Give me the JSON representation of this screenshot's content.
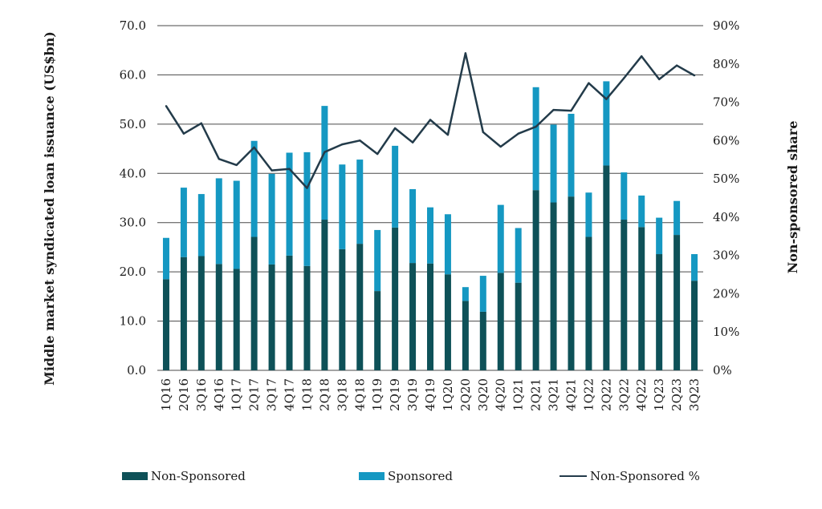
{
  "chart_data": {
    "type": "bar",
    "stacked": true,
    "categories": [
      "1Q16",
      "2Q16",
      "3Q16",
      "4Q16",
      "1Q17",
      "2Q17",
      "3Q17",
      "4Q17",
      "1Q18",
      "2Q18",
      "3Q18",
      "4Q18",
      "1Q19",
      "2Q19",
      "3Q19",
      "4Q19",
      "1Q20",
      "2Q20",
      "3Q20",
      "4Q20",
      "1Q21",
      "2Q21",
      "3Q21",
      "4Q21",
      "1Q22",
      "2Q22",
      "3Q22",
      "4Q22",
      "1Q23",
      "2Q23",
      "3Q23"
    ],
    "series": [
      {
        "name": "Non-Sponsored",
        "type": "bar",
        "axis": "left",
        "values": [
          18.5,
          23.0,
          23.2,
          21.6,
          20.6,
          27.1,
          21.5,
          23.3,
          21.2,
          30.6,
          24.6,
          25.7,
          16.1,
          29.0,
          21.8,
          21.7,
          19.5,
          14.1,
          11.9,
          19.8,
          17.8,
          36.6,
          34.1,
          35.3,
          27.1,
          41.6,
          30.6,
          29.1,
          23.6,
          27.5,
          18.2
        ]
      },
      {
        "name": "Sponsored",
        "type": "bar",
        "axis": "left",
        "values": [
          8.4,
          14.1,
          12.6,
          17.4,
          17.9,
          19.5,
          18.4,
          20.9,
          23.1,
          23.1,
          17.2,
          17.1,
          12.4,
          16.6,
          15.0,
          11.4,
          12.2,
          2.8,
          7.3,
          13.8,
          11.1,
          20.9,
          15.8,
          16.8,
          9.0,
          17.1,
          9.6,
          6.4,
          7.4,
          6.9,
          5.4
        ]
      },
      {
        "name": "Non-Sponsored %",
        "type": "line",
        "axis": "right",
        "values": [
          69.0,
          61.8,
          64.5,
          55.2,
          53.6,
          58.2,
          52.2,
          52.6,
          47.6,
          57.0,
          59.0,
          60.0,
          56.5,
          63.2,
          59.5,
          65.4,
          61.5,
          82.8,
          62.2,
          58.4,
          61.8,
          63.6,
          68.0,
          67.8,
          75.0,
          70.8,
          76.3,
          82.0,
          76.0,
          79.6,
          77.0
        ]
      }
    ],
    "left_axis": {
      "label": "Middle market syndicated loan issuance (US$bn)",
      "ylim": [
        0,
        70
      ],
      "ticks": [
        0,
        10,
        20,
        30,
        40,
        50,
        60,
        70
      ],
      "tick_labels": [
        "0.0",
        "10.0",
        "20.0",
        "30.0",
        "40.0",
        "50.0",
        "60.0",
        "70.0"
      ]
    },
    "right_axis": {
      "label": "Non-sponsored share",
      "ylim": [
        0,
        90
      ],
      "ticks": [
        0,
        10,
        20,
        30,
        40,
        50,
        60,
        70,
        80,
        90
      ],
      "tick_labels": [
        "0%",
        "10%",
        "20%",
        "30%",
        "40%",
        "50%",
        "60%",
        "70%",
        "80%",
        "90%"
      ]
    },
    "grid": true,
    "legend_position": "bottom",
    "colors": {
      "Non-Sponsored": "#0e5158",
      "Sponsored": "#1598c2",
      "Non-Sponsored %": "#233b4a"
    }
  },
  "legend": [
    {
      "label": "Non-Sponsored",
      "color": "#0e5158",
      "kind": "bar"
    },
    {
      "label": "Sponsored",
      "color": "#1598c2",
      "kind": "bar"
    },
    {
      "label": "Non-Sponsored %",
      "color": "#233b4a",
      "kind": "line"
    }
  ]
}
